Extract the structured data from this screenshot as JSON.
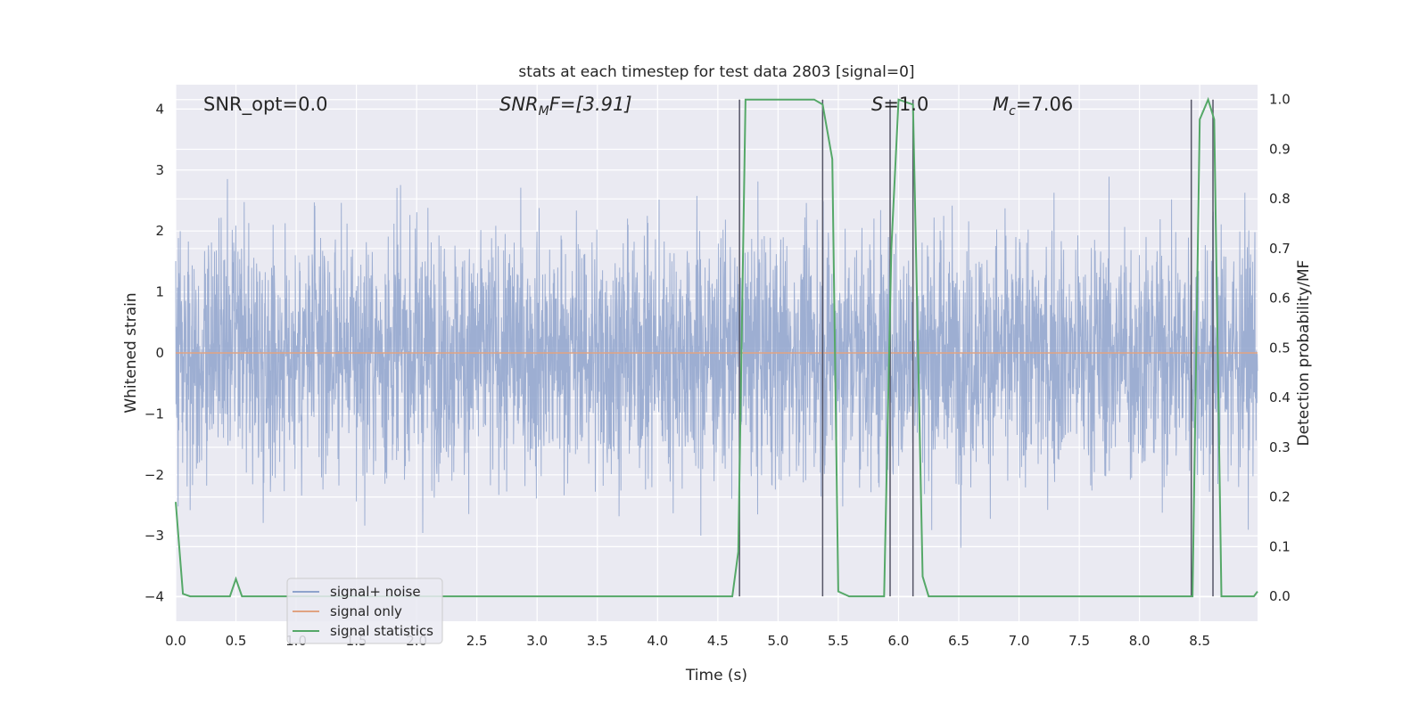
{
  "chart_data": {
    "type": "line",
    "title": "stats at each timestep for test data 2803 [signal=0]",
    "xlabel": "Time (s)",
    "ylabel": "Whitened strain",
    "ylabel_right": "Detection probability/MF",
    "xlim": [
      0.0,
      8.98
    ],
    "ylim": [
      -4.4,
      4.4
    ],
    "ylim_right": [
      -0.05,
      1.03
    ],
    "x_ticks": [
      "0.0",
      "0.5",
      "1.0",
      "1.5",
      "2.0",
      "2.5",
      "3.0",
      "3.5",
      "4.0",
      "4.5",
      "5.0",
      "5.5",
      "6.0",
      "6.5",
      "7.0",
      "7.5",
      "8.0",
      "8.5"
    ],
    "x_tick_values": [
      0.0,
      0.5,
      1.0,
      1.5,
      2.0,
      2.5,
      3.0,
      3.5,
      4.0,
      4.5,
      5.0,
      5.5,
      6.0,
      6.5,
      7.0,
      7.5,
      8.0,
      8.5
    ],
    "y_ticks": [
      "−4",
      "−3",
      "−2",
      "−1",
      "0",
      "1",
      "2",
      "3",
      "4"
    ],
    "y_tick_values": [
      -4,
      -3,
      -2,
      -1,
      0,
      1,
      2,
      3,
      4
    ],
    "y_right_ticks": [
      "0.0",
      "0.1",
      "0.2",
      "0.3",
      "0.4",
      "0.5",
      "0.6",
      "0.7",
      "0.8",
      "0.9",
      "1.0"
    ],
    "y_right_tick_values": [
      0.0,
      0.1,
      0.2,
      0.3,
      0.4,
      0.5,
      0.6,
      0.7,
      0.8,
      0.9,
      1.0
    ],
    "grid": true,
    "legend_placement": "lower-left",
    "annotations": {
      "snr_opt": "SNR_opt=0.0",
      "snr_mf_main": "SNR",
      "snr_mf_sub": "M",
      "snr_mf_tail": "F=[3.91]",
      "s_main": "S",
      "s_tail": "=1.0",
      "mc_main": "M",
      "mc_sub": "c",
      "mc_tail": "=7.06"
    },
    "series": [
      {
        "name": "signal+ noise",
        "color": "#8fa3cc",
        "note_amplitude_envelope": [
          -4.0,
          4.0
        ],
        "typical_range": [
          -1.6,
          1.6
        ]
      },
      {
        "name": "signal only",
        "color": "#e0a382",
        "constant_value": 0.0
      },
      {
        "name": "signal statistics",
        "color": "#55a868",
        "axis": "right",
        "x": [
          0.0,
          0.06,
          0.12,
          0.2,
          0.3,
          0.45,
          0.5,
          0.55,
          0.6,
          1.0,
          2.0,
          3.0,
          4.0,
          4.62,
          4.67,
          4.73,
          5.0,
          5.3,
          5.37,
          5.45,
          5.5,
          5.59,
          5.75,
          5.88,
          5.94,
          6.0,
          6.12,
          6.2,
          6.25,
          6.5,
          7.0,
          8.0,
          8.44,
          8.5,
          8.57,
          8.62,
          8.68,
          8.95,
          9.0
        ],
        "y": [
          0.19,
          0.005,
          0.0,
          0.0,
          0.0,
          0.0,
          0.035,
          0.0,
          0.0,
          0.0,
          0.0,
          0.0,
          0.0,
          0.0,
          0.09,
          1.0,
          1.0,
          1.0,
          0.99,
          0.88,
          0.01,
          0.0,
          0.0,
          0.0,
          0.7,
          1.0,
          0.99,
          0.04,
          0.0,
          0.0,
          0.0,
          0.0,
          0.0,
          0.96,
          1.0,
          0.96,
          0.0,
          0.0,
          0.01
        ]
      }
    ],
    "vertical_lines_x": [
      4.68,
      5.37,
      5.93,
      6.12,
      8.43,
      8.61
    ]
  }
}
